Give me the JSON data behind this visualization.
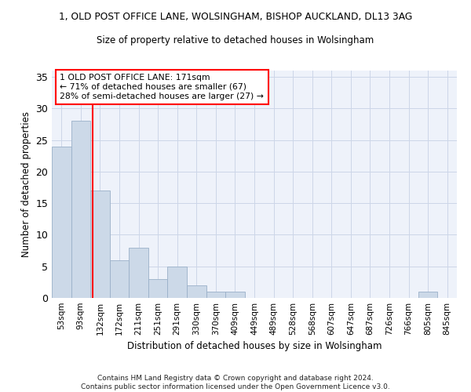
{
  "title_line1": "1, OLD POST OFFICE LANE, WOLSINGHAM, BISHOP AUCKLAND, DL13 3AG",
  "title_line2": "Size of property relative to detached houses in Wolsingham",
  "xlabel": "Distribution of detached houses by size in Wolsingham",
  "ylabel": "Number of detached properties",
  "bar_color": "#ccd9e8",
  "bar_edge_color": "#9ab0c8",
  "categories": [
    "53sqm",
    "93sqm",
    "132sqm",
    "172sqm",
    "211sqm",
    "251sqm",
    "291sqm",
    "330sqm",
    "370sqm",
    "409sqm",
    "449sqm",
    "489sqm",
    "528sqm",
    "568sqm",
    "607sqm",
    "647sqm",
    "687sqm",
    "726sqm",
    "766sqm",
    "805sqm",
    "845sqm"
  ],
  "values": [
    24,
    28,
    17,
    6,
    8,
    3,
    5,
    2,
    1,
    1,
    0,
    0,
    0,
    0,
    0,
    0,
    0,
    0,
    0,
    1,
    0
  ],
  "ylim": [
    0,
    36
  ],
  "yticks": [
    0,
    5,
    10,
    15,
    20,
    25,
    30,
    35
  ],
  "annotation_text": "1 OLD POST OFFICE LANE: 171sqm\n← 71% of detached houses are smaller (67)\n28% of semi-detached houses are larger (27) →",
  "ref_line_x": 1.62,
  "footnote": "Contains HM Land Registry data © Crown copyright and database right 2024.\nContains public sector information licensed under the Open Government Licence v3.0.",
  "grid_color": "#ccd6e8",
  "background_color": "#eef2fa"
}
